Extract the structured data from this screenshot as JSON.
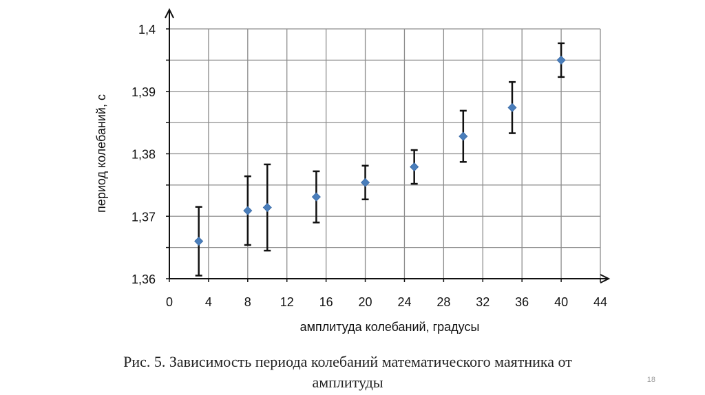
{
  "caption_line1": "Рис. 5. Зависимость периода колебаний математического маятника от",
  "caption_line2": "амплитуды",
  "slide_number": "18",
  "chart_data": {
    "type": "scatter",
    "xlabel": "амплитуда колебаний, градусы",
    "ylabel": "период колебаний, с",
    "xlim": [
      0,
      44
    ],
    "ylim": [
      1.36,
      1.4
    ],
    "x_ticks": [
      0,
      4,
      8,
      12,
      16,
      20,
      24,
      28,
      32,
      36,
      40,
      44
    ],
    "x_tick_labels": [
      "0",
      "4",
      "8",
      "12",
      "16",
      "20",
      "24",
      "28",
      "32",
      "36",
      "40",
      "44"
    ],
    "y_ticks": [
      1.36,
      1.37,
      1.38,
      1.39,
      1.4
    ],
    "y_tick_labels": [
      "1,36",
      "1,37",
      "1,38",
      "1,39",
      "1,4"
    ],
    "grid": true,
    "marker_color": "#4a7ebb",
    "errorbar_color": "#111111",
    "series": [
      {
        "points": [
          {
            "x": 3,
            "y": 1.366,
            "err_low": 1.3605,
            "err_high": 1.3715
          },
          {
            "x": 8,
            "y": 1.3709,
            "err_low": 1.3654,
            "err_high": 1.3764
          },
          {
            "x": 10,
            "y": 1.3714,
            "err_low": 1.3645,
            "err_high": 1.3783
          },
          {
            "x": 15,
            "y": 1.3731,
            "err_low": 1.369,
            "err_high": 1.3772
          },
          {
            "x": 20,
            "y": 1.3754,
            "err_low": 1.3727,
            "err_high": 1.3781
          },
          {
            "x": 25,
            "y": 1.3779,
            "err_low": 1.3752,
            "err_high": 1.3806
          },
          {
            "x": 30,
            "y": 1.3828,
            "err_low": 1.3787,
            "err_high": 1.3869
          },
          {
            "x": 35,
            "y": 1.3874,
            "err_low": 1.3833,
            "err_high": 1.3915
          },
          {
            "x": 40,
            "y": 1.395,
            "err_low": 1.3923,
            "err_high": 1.3977
          }
        ]
      }
    ]
  }
}
